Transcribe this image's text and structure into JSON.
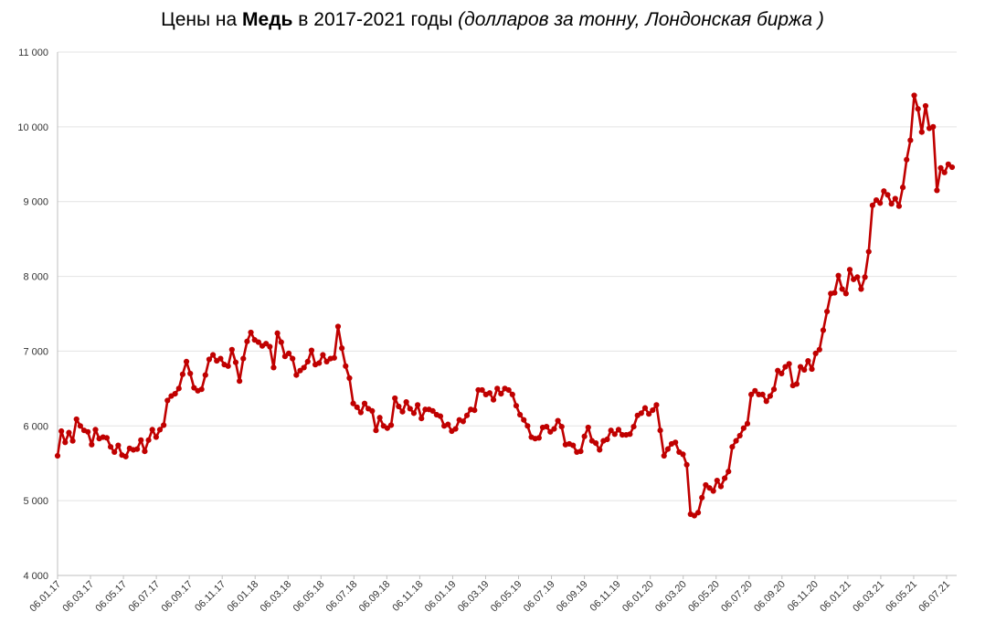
{
  "title": {
    "part1": "Цены на ",
    "bold": "Медь",
    "part2": " в 2017-2021 годы ",
    "italic": "(долларов за тонну, Лондонская биржа )"
  },
  "colors": {
    "series": "#c00000",
    "grid": "#e3e3e3",
    "axis": "#bfbfbf"
  },
  "chart_data": {
    "type": "line",
    "title": "Цены на Медь в 2017-2021 годы (долларов за тонну, Лондонская биржа )",
    "xlabel": "",
    "ylabel": "",
    "ylim": [
      4000,
      11000
    ],
    "y_ticks": [
      {
        "value": 4000,
        "label": "4 000"
      },
      {
        "value": 5000,
        "label": "5 000"
      },
      {
        "value": 6000,
        "label": "6 000"
      },
      {
        "value": 7000,
        "label": "7 000"
      },
      {
        "value": 8000,
        "label": "8 000"
      },
      {
        "value": 9000,
        "label": "9 000"
      },
      {
        "value": 10000,
        "label": "10 000"
      },
      {
        "value": 11000,
        "label": "11 000"
      }
    ],
    "x_ticks": [
      "06.01.17",
      "06.03.17",
      "06.05.17",
      "06.07.17",
      "06.09.17",
      "06.11.17",
      "06.01.18",
      "06.03.18",
      "06.05.18",
      "06.07.18",
      "06.09.18",
      "06.11.18",
      "06.01.19",
      "06.03.19",
      "06.05.19",
      "06.07.19",
      "06.09.19",
      "06.11.19",
      "06.01.20",
      "06.03.20",
      "06.05.20",
      "06.07.20",
      "06.09.20",
      "06.11.20",
      "06.01.21",
      "06.03.21",
      "06.05.21",
      "06.07.21"
    ],
    "grid": true,
    "legend": "none",
    "series": [
      {
        "x_start": "06.01.17",
        "x_step_weeks": 1,
        "values": [
          5600,
          5930,
          5780,
          5910,
          5800,
          6090,
          6000,
          5940,
          5920,
          5750,
          5950,
          5830,
          5850,
          5840,
          5720,
          5650,
          5740,
          5610,
          5590,
          5700,
          5680,
          5690,
          5810,
          5660,
          5810,
          5950,
          5850,
          5950,
          6010,
          6340,
          6400,
          6430,
          6500,
          6690,
          6860,
          6700,
          6510,
          6470,
          6490,
          6680,
          6890,
          6950,
          6870,
          6900,
          6820,
          6800,
          7020,
          6850,
          6600,
          6900,
          7130,
          7250,
          7150,
          7120,
          7070,
          7100,
          7060,
          6780,
          7240,
          7120,
          6930,
          6970,
          6900,
          6680,
          6740,
          6780,
          6860,
          7010,
          6820,
          6840,
          6950,
          6860,
          6900,
          6910,
          7330,
          7040,
          6800,
          6640,
          6300,
          6250,
          6180,
          6300,
          6230,
          6200,
          5940,
          6110,
          6000,
          5970,
          6010,
          6370,
          6260,
          6190,
          6320,
          6230,
          6170,
          6280,
          6100,
          6220,
          6220,
          6200,
          6150,
          6130,
          6000,
          6020,
          5930,
          5960,
          6080,
          6060,
          6140,
          6220,
          6210,
          6480,
          6480,
          6420,
          6440,
          6350,
          6500,
          6430,
          6500,
          6480,
          6420,
          6270,
          6150,
          6080,
          6000,
          5850,
          5830,
          5840,
          5980,
          5990,
          5920,
          5960,
          6070,
          5990,
          5750,
          5760,
          5740,
          5650,
          5660,
          5860,
          5980,
          5800,
          5770,
          5680,
          5800,
          5820,
          5940,
          5890,
          5950,
          5880,
          5880,
          5890,
          5990,
          6140,
          6170,
          6240,
          6160,
          6210,
          6280,
          5940,
          5600,
          5690,
          5760,
          5780,
          5650,
          5620,
          5480,
          4820,
          4800,
          4840,
          5040,
          5210,
          5170,
          5130,
          5270,
          5190,
          5300,
          5390,
          5720,
          5800,
          5870,
          5970,
          6030,
          6420,
          6470,
          6420,
          6420,
          6330,
          6400,
          6490,
          6740,
          6700,
          6790,
          6830,
          6540,
          6560,
          6790,
          6750,
          6870,
          6760,
          6970,
          7020,
          7280,
          7530,
          7770,
          7780,
          8010,
          7830,
          7770,
          8090,
          7960,
          7990,
          7830,
          7990,
          8330,
          8950,
          9020,
          8980,
          9140,
          9090,
          8970,
          9040,
          8940,
          9190,
          9560,
          9820,
          10420,
          10240,
          9930,
          10280,
          9980,
          10000,
          9150,
          9450,
          9390,
          9500,
          9460
        ]
      }
    ]
  }
}
